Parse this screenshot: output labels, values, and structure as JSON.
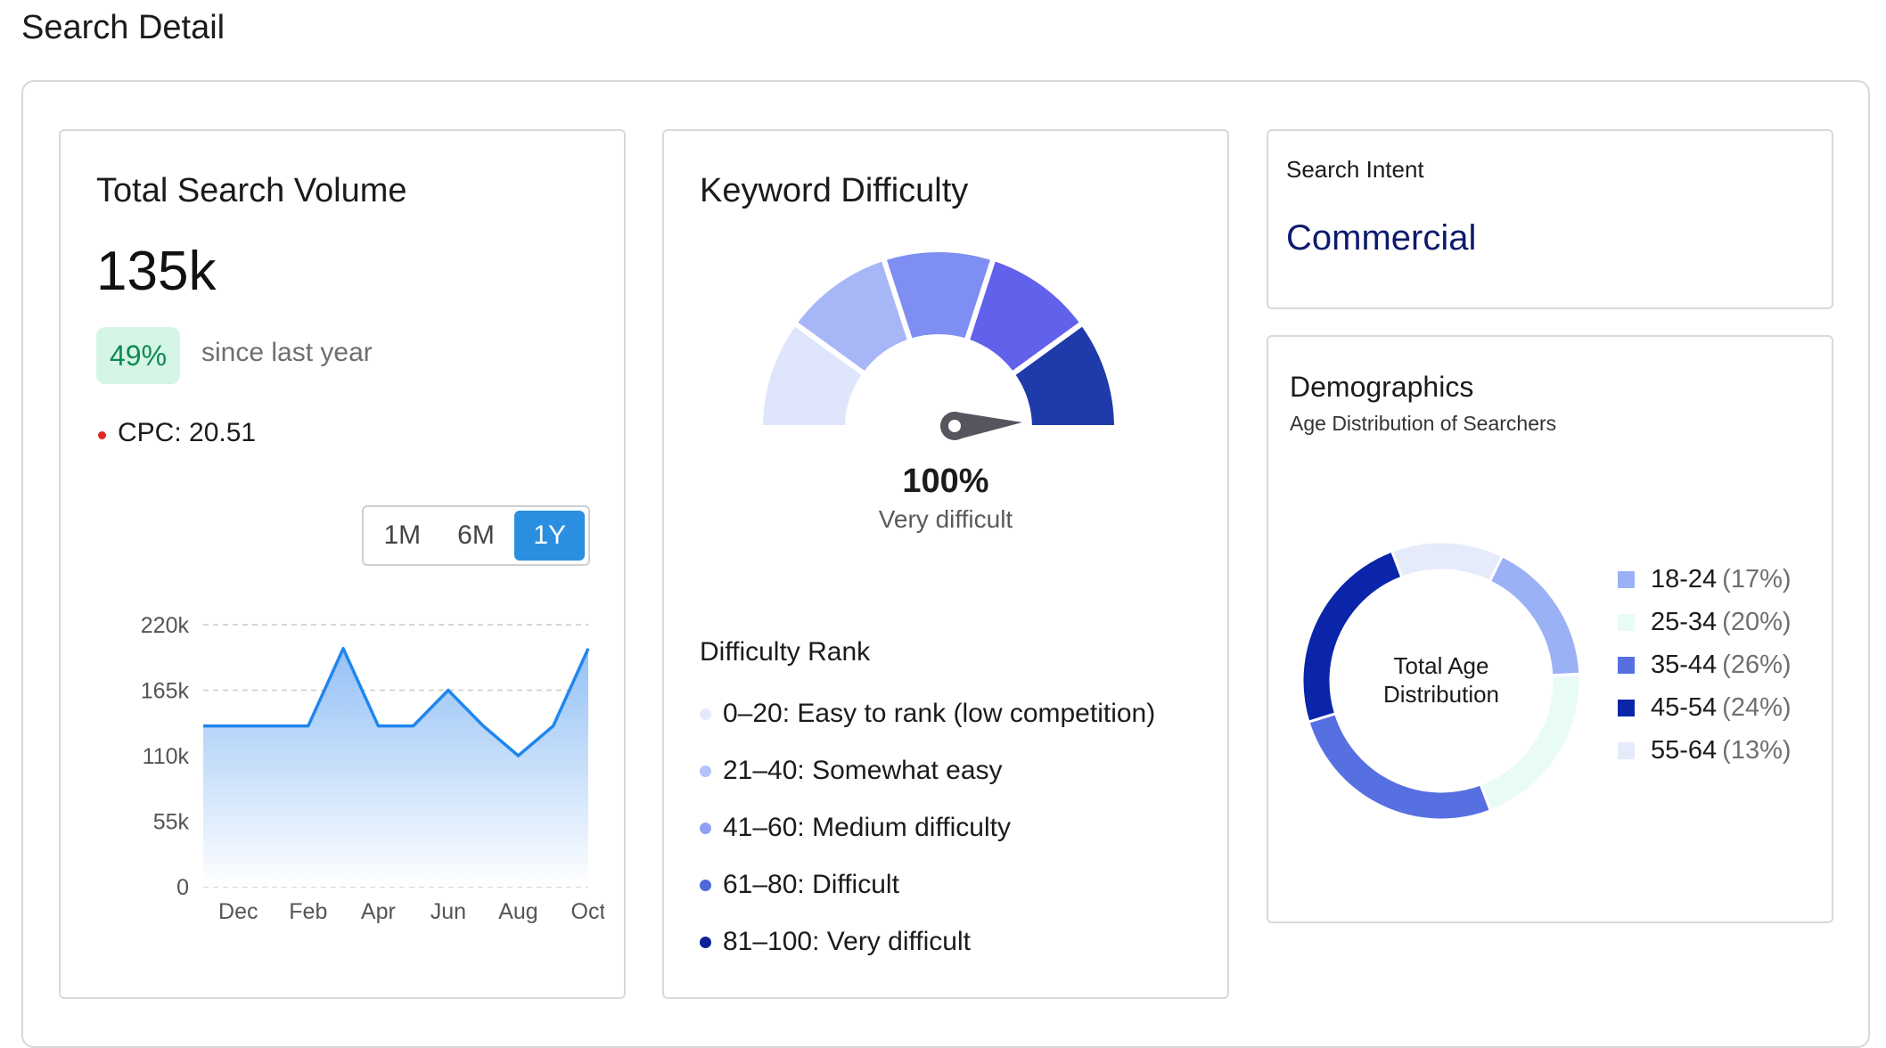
{
  "page": {
    "title": "Search Detail"
  },
  "volume": {
    "title": "Total Search Volume",
    "total": "135k",
    "growth": "49%",
    "growth_caption": "since last year",
    "cpc": "CPC: 20.51",
    "ranges": [
      "1M",
      "6M",
      "1Y"
    ],
    "active_range": "1Y",
    "colors": {
      "line": "#1f86ee",
      "fill_top": "#8fbef5",
      "fill_bottom": "#ffffff",
      "grid": "#c9c9c9"
    }
  },
  "chart_data": {
    "type": "area",
    "title": "",
    "xlabel": "",
    "ylabel": "",
    "ylim": [
      0,
      220000
    ],
    "yticks": [
      0,
      55000,
      110000,
      165000,
      220000
    ],
    "yticklabels": [
      "0",
      "55k",
      "110k",
      "165k",
      "220k"
    ],
    "xticks": [
      1,
      3,
      5,
      7,
      9,
      11
    ],
    "xticklabels": [
      "Dec",
      "Feb",
      "Apr",
      "Jun",
      "Aug",
      "Oct"
    ],
    "grid": "horizontal-dashed",
    "series": [
      {
        "x": [
          0,
          1,
          2,
          3,
          4,
          5,
          6,
          7,
          8,
          9,
          10,
          11
        ],
        "values": [
          135000,
          135000,
          135000,
          135000,
          200000,
          135000,
          135000,
          165000,
          135000,
          110000,
          135000,
          200000
        ]
      }
    ]
  },
  "difficulty": {
    "title": "Keyword Difficulty",
    "value": 100,
    "value_label": "100%",
    "level_label": "Very difficult",
    "gauge_colors": [
      "#dfe6fb",
      "#a7b6f6",
      "#7f8ef2",
      "#6161ec",
      "#1f3aa9"
    ],
    "needle_color": "#55555e",
    "rank_title": "Difficulty Rank",
    "ranks": [
      {
        "label": "0–20: Easy to rank (low competition)",
        "color": "#e4e9fb"
      },
      {
        "label": "21–40: Somewhat easy",
        "color": "#b3c2f7"
      },
      {
        "label": "41–60: Medium difficulty",
        "color": "#8ea1f2"
      },
      {
        "label": "61–80: Difficult",
        "color": "#4e69dd"
      },
      {
        "label": "81–100: Very difficult",
        "color": "#0e1f9a"
      }
    ]
  },
  "intent": {
    "label": "Search Intent",
    "value": "Commercial"
  },
  "demographics": {
    "title": "Demographics",
    "subtitle": "Age Distribution of Searchers",
    "center_label_line1": "Total Age",
    "center_label_line2": "Distribution",
    "segments": [
      {
        "range": "18-24",
        "pct_label": "(17%)",
        "pct": 17,
        "color": "#9bb1f6"
      },
      {
        "range": "25-34",
        "pct_label": "(20%)",
        "pct": 20,
        "color": "#e9fbf7"
      },
      {
        "range": "35-44",
        "pct_label": "(26%)",
        "pct": 26,
        "color": "#5670e2"
      },
      {
        "range": "45-54",
        "pct_label": "(24%)",
        "pct": 24,
        "color": "#0a25a9"
      },
      {
        "range": "55-64",
        "pct_label": "(13%)",
        "pct": 13,
        "color": "#e6ebfb"
      }
    ]
  }
}
